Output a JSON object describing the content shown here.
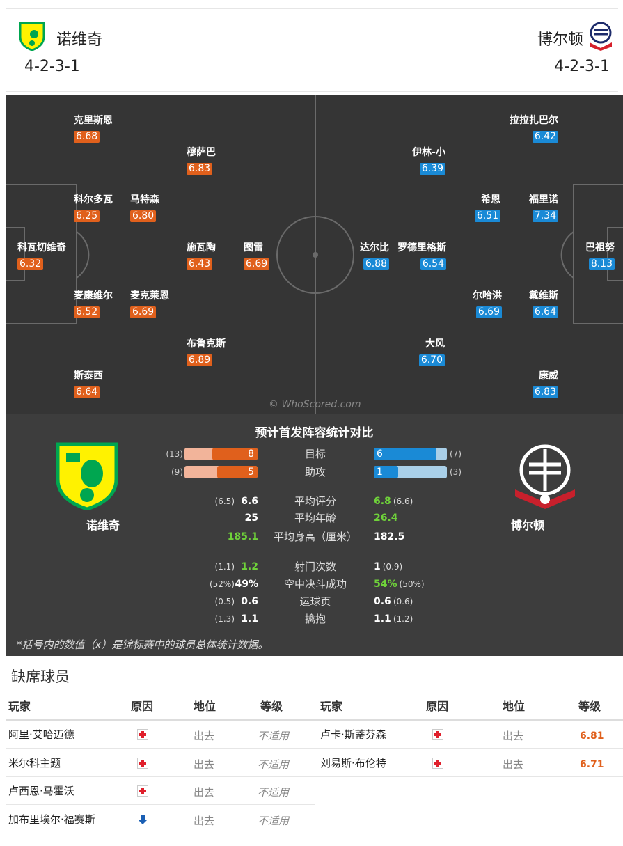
{
  "header": {
    "home": {
      "name": "诺维奇",
      "formation": "4-2-3-1"
    },
    "away": {
      "name": "博尔顿",
      "formation": "4-2-3-1"
    }
  },
  "pitch": {
    "home_players": [
      {
        "name": "克里斯恩",
        "rating": "6.68"
      },
      {
        "name": "穆萨巴",
        "rating": "6.83"
      },
      {
        "name": "科尔多瓦",
        "rating": "6.25"
      },
      {
        "name": "马特森",
        "rating": "6.80"
      },
      {
        "name": "科瓦切维奇",
        "rating": "6.32"
      },
      {
        "name": "施瓦陶",
        "rating": "6.43"
      },
      {
        "name": "图雷",
        "rating": "6.69"
      },
      {
        "name": "麦康维尔",
        "rating": "6.52"
      },
      {
        "name": "麦克莱恩",
        "rating": "6.69"
      },
      {
        "name": "布鲁克斯",
        "rating": "6.89"
      },
      {
        "name": "斯泰西",
        "rating": "6.64"
      }
    ],
    "away_players": [
      {
        "name": "拉拉扎巴尔",
        "rating": "6.42"
      },
      {
        "name": "伊林-小",
        "rating": "6.39"
      },
      {
        "name": "希恩",
        "rating": "6.51"
      },
      {
        "name": "福里诺",
        "rating": "7.34"
      },
      {
        "name": "巴祖努",
        "rating": "8.13"
      },
      {
        "name": "达尔比",
        "rating": "6.88"
      },
      {
        "name": "罗德里格斯",
        "rating": "6.54"
      },
      {
        "name": "尔哈洪",
        "rating": "6.69"
      },
      {
        "name": "戴维斯",
        "rating": "6.64"
      },
      {
        "name": "大风",
        "rating": "6.70"
      },
      {
        "name": "康威",
        "rating": "6.83"
      }
    ],
    "watermark": "© WhoScored.com"
  },
  "comparison": {
    "title": "预计首发阵容统计对比",
    "home_team": "诺维奇",
    "away_team": "博尔顿",
    "bars": [
      {
        "label": "目标",
        "home": 8,
        "home_total": {
          "value": 13,
          "label": "(13)"
        },
        "away": 6,
        "away_total": {
          "value": 7,
          "label": "(7)"
        }
      },
      {
        "label": "助攻",
        "home": 5,
        "home_total": {
          "value": 9,
          "label": "(9)"
        },
        "away": 1,
        "away_total": {
          "value": 3,
          "label": "(3)"
        }
      }
    ],
    "stats": [
      {
        "label": "平均评分",
        "home": "6.6",
        "home_total": "(6.5)",
        "away": "6.8",
        "away_total": "(6.6)",
        "leader": "away"
      },
      {
        "label": "平均年龄",
        "home": "25",
        "away": "26.4",
        "leader": "away"
      },
      {
        "label": "平均身高（厘米）",
        "home": "185.1",
        "away": "182.5",
        "leader": "home"
      },
      {
        "label": "射门次数",
        "home": "1.2",
        "home_total": "(1.1)",
        "away": "1",
        "away_total": "(0.9)",
        "leader": "home"
      },
      {
        "label": "空中决斗成功",
        "home": "49%",
        "home_total": "(52%)",
        "away": "54%",
        "away_total": "(50%)",
        "leader": "away"
      },
      {
        "label": "运球页",
        "home": "0.6",
        "home_total": "(0.5)",
        "away": "0.6",
        "away_total": "(0.6)"
      },
      {
        "label": "擒抱",
        "home": "1.1",
        "home_total": "(1.3)",
        "away": "1.1",
        "away_total": "(1.2)"
      }
    ],
    "footnote": "*括号内的数值（x）是锦标赛中的球员总体统计数据。"
  },
  "absent": {
    "title": "缺席球员",
    "columns": [
      "玩家",
      "原因",
      "地位",
      "等级"
    ],
    "home": [
      {
        "player": "阿里·艾哈迈德",
        "reason": "injury",
        "status": "出去",
        "grade": "不适用"
      },
      {
        "player": "米尔科主题",
        "reason": "injury",
        "status": "出去",
        "grade": "不适用"
      },
      {
        "player": "卢西恩·马霍沃",
        "reason": "injury",
        "status": "出去",
        "grade": "不适用"
      },
      {
        "player": "加布里埃尔·福赛斯",
        "reason": "other",
        "status": "出去",
        "grade": "不适用"
      }
    ],
    "away": [
      {
        "player": "卢卡·斯蒂芬森",
        "reason": "injury",
        "status": "出去",
        "grade": "6.81"
      },
      {
        "player": "刘易斯·布伦特",
        "reason": "injury",
        "status": "出去",
        "grade": "6.71"
      }
    ]
  }
}
